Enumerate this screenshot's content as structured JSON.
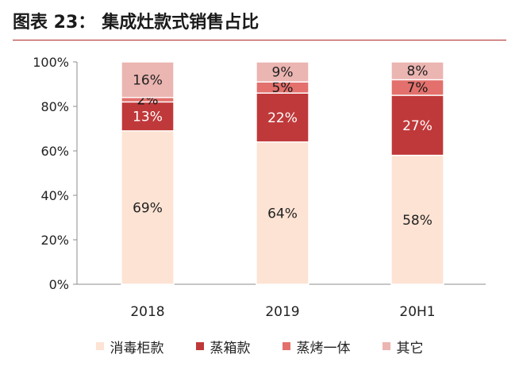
{
  "title": {
    "figure_no": "图表 23：",
    "text": "集成灶款式销售占比"
  },
  "chart_data": {
    "type": "bar",
    "stacked": true,
    "categories": [
      "2018",
      "2019",
      "20H1"
    ],
    "ylim": [
      0,
      100
    ],
    "yticks": [
      0,
      20,
      40,
      60,
      80,
      100
    ],
    "ytick_labels": [
      "0%",
      "20%",
      "40%",
      "60%",
      "80%",
      "100%"
    ],
    "grid": false,
    "legend_position": "bottom",
    "series": [
      {
        "name": "消毒柜款",
        "color": "#fde3d3",
        "values": [
          69,
          64,
          58
        ],
        "labels": [
          "69%",
          "64%",
          "58%"
        ]
      },
      {
        "name": "蒸箱款",
        "color": "#c0393a",
        "values": [
          13,
          22,
          27
        ],
        "labels": [
          "13%",
          "22%",
          "27%"
        ]
      },
      {
        "name": "蒸烤一体",
        "color": "#e3706c",
        "values": [
          2,
          5,
          7
        ],
        "labels": [
          "2%",
          "5%",
          "7%"
        ]
      },
      {
        "name": "其它",
        "color": "#ebb5b1",
        "values": [
          16,
          9,
          8
        ],
        "labels": [
          "16%",
          "9%",
          "8%"
        ]
      }
    ]
  }
}
